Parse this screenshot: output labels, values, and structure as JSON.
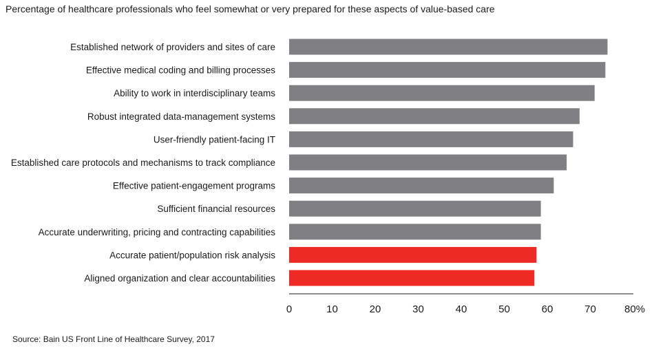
{
  "chart_data": {
    "type": "bar",
    "orientation": "horizontal",
    "title": "Percentage of healthcare professionals who feel somewhat or very prepared for these aspects of value-based care",
    "source": "Source: Bain US Front Line of Healthcare Survey, 2017",
    "categories": [
      "Established network of providers and sites of care",
      "Effective medical coding and billing processes",
      "Ability to work in interdisciplinary teams",
      "Robust integrated data-management systems",
      "User-friendly patient-facing IT",
      "Established care protocols and mechanisms to track compliance",
      "Effective patient-engagement programs",
      "Sufficient financial resources",
      "Accurate underwriting, pricing and contracting capabilities",
      "Accurate patient/population risk analysis",
      "Aligned organization and clear accountabilities"
    ],
    "values": [
      74,
      73.5,
      71,
      67.5,
      66,
      64.5,
      61.5,
      58.5,
      58.5,
      57.5,
      57
    ],
    "highlighted": [
      false,
      false,
      false,
      false,
      false,
      false,
      false,
      false,
      false,
      true,
      true
    ],
    "xlim": [
      0,
      80
    ],
    "ticks": [
      "0",
      "10",
      "20",
      "30",
      "40",
      "50",
      "60",
      "70",
      "80%"
    ],
    "grid": false,
    "colors": {
      "default": "#808084",
      "highlight": "#ee2a24"
    }
  }
}
